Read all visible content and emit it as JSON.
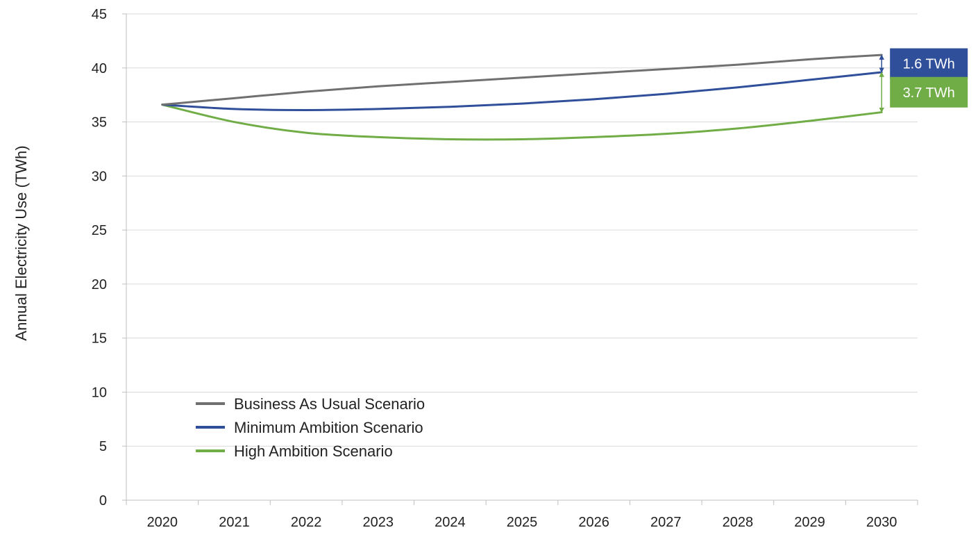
{
  "chart_data": {
    "type": "line",
    "title": "",
    "xlabel": "",
    "ylabel": "Annual Electricity Use (TWh)",
    "x": [
      "2020",
      "2021",
      "2022",
      "2023",
      "2024",
      "2025",
      "2026",
      "2027",
      "2028",
      "2029",
      "2030"
    ],
    "ylim": [
      0,
      45
    ],
    "yticks": [
      "0",
      "5",
      "10",
      "15",
      "20",
      "25",
      "30",
      "35",
      "40",
      "45"
    ],
    "grid": true,
    "legend_position": "bottom-left",
    "series": [
      {
        "name": "Business As Usual Scenario",
        "color": "#707070",
        "values": [
          36.6,
          37.2,
          37.8,
          38.3,
          38.7,
          39.1,
          39.5,
          39.9,
          40.3,
          40.8,
          41.2
        ]
      },
      {
        "name": "Minimum Ambition Scenario",
        "color": "#2F4F9A",
        "values": [
          36.6,
          36.2,
          36.1,
          36.2,
          36.4,
          36.7,
          37.1,
          37.6,
          38.2,
          38.9,
          39.6
        ]
      },
      {
        "name": "High Ambition Scenario",
        "color": "#70AD47",
        "values": [
          36.6,
          35.0,
          34.0,
          33.6,
          33.4,
          33.4,
          33.6,
          33.9,
          34.4,
          35.1,
          35.9
        ]
      }
    ],
    "annotations": [
      {
        "text": "1.6 TWh",
        "color": "#2F4F9A",
        "from": 41.2,
        "to": 39.6
      },
      {
        "text": "3.7 TWh",
        "color": "#70AD47",
        "from": 39.6,
        "to": 35.9
      }
    ]
  }
}
